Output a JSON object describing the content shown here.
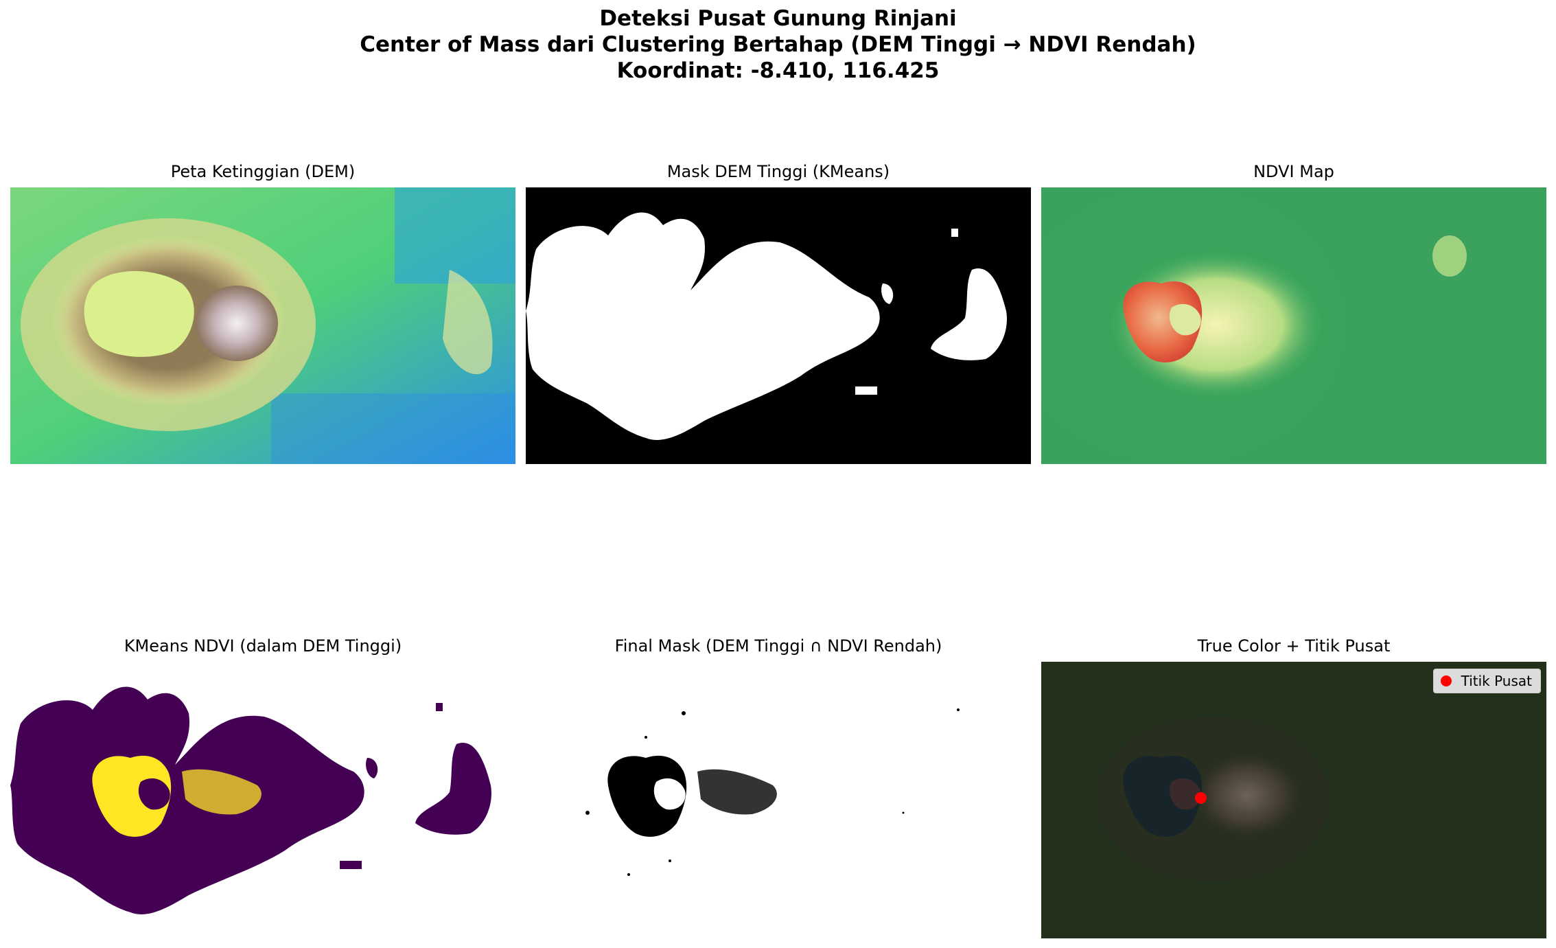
{
  "figure": {
    "title_lines": [
      "Deteksi Pusat Gunung Rinjani",
      "Center of Mass dari Clustering Bertahap (DEM Tinggi → NDVI Rendah)",
      "Koordinat: -8.410, 116.425"
    ]
  },
  "panels": {
    "dem": {
      "title": "Peta Ketinggian (DEM)",
      "colormap": "terrain"
    },
    "dem_mask": {
      "title": "Mask DEM Tinggi (KMeans)",
      "colormap": "gray"
    },
    "ndvi": {
      "title": "NDVI Map",
      "colormap": "RdYlGn"
    },
    "kmeans_ndvi": {
      "title": "KMeans NDVI (dalam DEM Tinggi)",
      "colormap": "viridis"
    },
    "final_mask": {
      "title": "Final Mask (DEM Tinggi ∩ NDVI Rendah)",
      "colormap": "gray_r"
    },
    "true_color": {
      "title": "True Color + Titik Pusat",
      "legend_label": "Titik Pusat",
      "marker_color": "#ff0000"
    }
  },
  "colors": {
    "dem_low": "#2a8fe8",
    "dem_mid": "#5fd27a",
    "dem_high": "#e6e59a",
    "dem_peak": "#f2eef0",
    "ndvi_high": "#3aa55c",
    "ndvi_low": "#e4603f",
    "viridis_low": "#440154",
    "viridis_high": "#fde725",
    "true_color_bg": "#1c2a18"
  }
}
